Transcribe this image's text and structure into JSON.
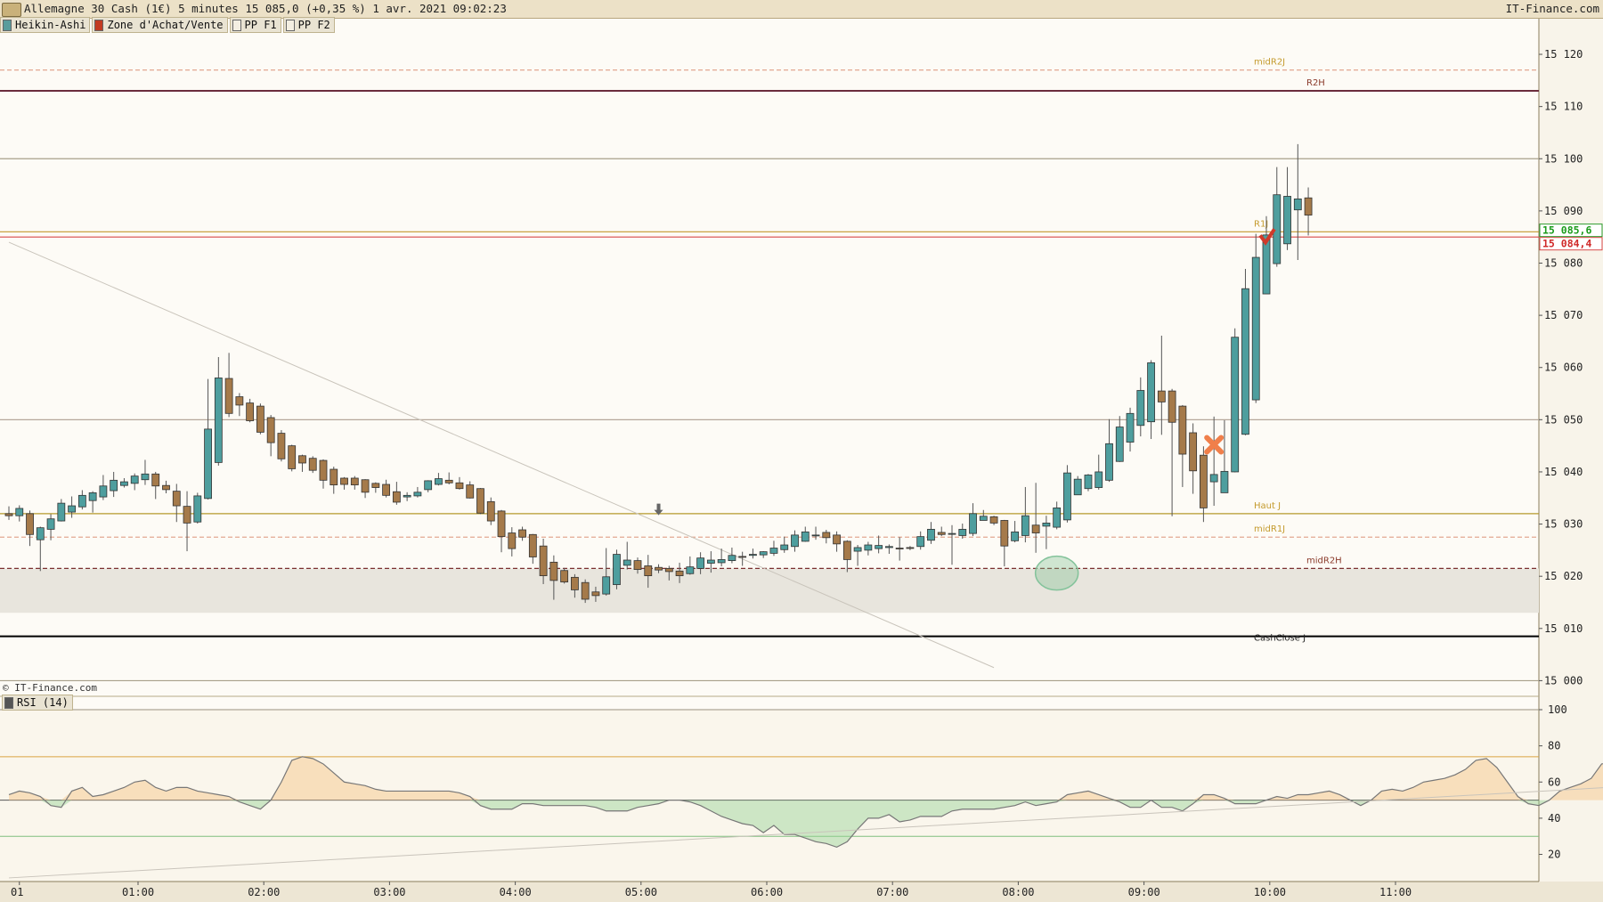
{
  "header": {
    "title": "Allemagne 30 Cash (1€) 5 minutes 15 085,0 (+0,35 %) 1 avr. 2021 09:02:23",
    "brand": "IT-Finance.com"
  },
  "legend": [
    {
      "label": "Heikin-Ashi",
      "swatch": "#5a9c9c"
    },
    {
      "label": "Zone d'Achat/Vente",
      "swatch": "#c23b22"
    },
    {
      "label": "PP F1",
      "swatch": "#f4efe2"
    },
    {
      "label": "PP F2",
      "swatch": "#f4efe2"
    }
  ],
  "watermark": "© IT-Finance.com",
  "rsi_label": "RSI (14)",
  "colors": {
    "bull": "#4e9e9e",
    "bear": "#a57a4a",
    "background": "#fdfbf6",
    "gold_line": "#c49a2c",
    "red_line": "#d84a4a"
  },
  "chart_data": [
    {
      "type": "candlestick",
      "subtype": "heikin-ashi",
      "interval": "5 minutes",
      "y_ticks": [
        "15 000",
        "15 010",
        "15 020",
        "15 030",
        "15 040",
        "15 050",
        "15 060",
        "15 070",
        "15 080",
        "15 090",
        "15 100",
        "15 110",
        "15 120"
      ],
      "ylim": [
        14997,
        15127
      ],
      "x_ticks": [
        "01",
        "01:00",
        "02:00",
        "03:00",
        "04:00",
        "05:00",
        "06:00",
        "07:00",
        "08:00",
        "09:00",
        "10:00",
        "11:00"
      ],
      "last_price_labels": [
        {
          "text": "15 085,6",
          "value": 15085.6,
          "color": "green"
        },
        {
          "text": "15 084,4",
          "value": 15084.4,
          "color": "red"
        }
      ],
      "levels": [
        {
          "name": "midR2J",
          "value": 15117,
          "style": "dashed",
          "color": "#e3a891"
        },
        {
          "name": "R2H",
          "value": 15113,
          "style": "solid",
          "color": "#6b2c3c"
        },
        {
          "name": "",
          "value": 15100,
          "style": "solid",
          "color": "#a8a08a"
        },
        {
          "name": "R1J",
          "value": 15086,
          "style": "solid",
          "color": "#c49a2c"
        },
        {
          "name": "",
          "value": 15085,
          "style": "solid",
          "color": "#d84a4a"
        },
        {
          "name": "",
          "value": 15050,
          "style": "solid",
          "color": "#b5a79a"
        },
        {
          "name": "Haut J",
          "value": 15032,
          "style": "solid",
          "color": "#b59a2c"
        },
        {
          "name": "midR1J",
          "value": 15027.5,
          "style": "dashed",
          "color": "#e3a891"
        },
        {
          "name": "midR2H",
          "value": 15021.5,
          "style": "dashed",
          "color": "#7b3030"
        },
        {
          "name": "CashClose J",
          "value": 15008.5,
          "style": "solid",
          "color": "#000000"
        },
        {
          "name": "",
          "value": 15000,
          "style": "solid",
          "color": "#a8a08a"
        }
      ],
      "zone": {
        "from": 15021.5,
        "to": 15013
      },
      "candles": [
        [
          15032,
          15031.6,
          15033.4,
          15030.8
        ],
        [
          15031.6,
          15033,
          15033.6,
          15030.5
        ],
        [
          15032,
          15028,
          15032.6,
          15025.8
        ],
        [
          15027,
          15029.3,
          15029.5,
          15021
        ],
        [
          15029,
          15031,
          15031.9,
          15026.9
        ],
        [
          15030.6,
          15034,
          15034.8,
          15030.5
        ],
        [
          15032.3,
          15033.5,
          15035.3,
          15031.2
        ],
        [
          15033.3,
          15035.5,
          15036.5,
          15032.8
        ],
        [
          15034.5,
          15036,
          15036.3,
          15032.2
        ],
        [
          15035.2,
          15037.3,
          15039.4,
          15034.6
        ],
        [
          15036.4,
          15038.4,
          15040,
          15035.2
        ],
        [
          15037.4,
          15038.1,
          15038.8,
          15037
        ],
        [
          15037.8,
          15039.2,
          15039.7,
          15036.5
        ],
        [
          15038.5,
          15039.6,
          15042.3,
          15037.5
        ],
        [
          15039.6,
          15037.3,
          15040,
          15034.8
        ],
        [
          15037.4,
          15036.6,
          15038.3,
          15035.9
        ],
        [
          15036.3,
          15033.5,
          15037.7,
          15030.4
        ],
        [
          15033.4,
          15030.2,
          15036.3,
          15024.8
        ],
        [
          15030.4,
          15035.4,
          15036,
          15030.1
        ],
        [
          15034.9,
          15048.2,
          15057.8,
          15034.7
        ],
        [
          15041.8,
          15058,
          15062,
          15041.2
        ],
        [
          15057.9,
          15051.2,
          15062.8,
          15050.5
        ],
        [
          15054.4,
          15052.8,
          15055.1,
          15050.7
        ],
        [
          15053.2,
          15049.8,
          15054,
          15049.5
        ],
        [
          15052.6,
          15047.6,
          15053.1,
          15047.2
        ],
        [
          15050.4,
          15045.6,
          15050.9,
          15043
        ],
        [
          15047.4,
          15042.5,
          15048,
          15042
        ],
        [
          15045,
          15040.6,
          15045.2,
          15040.1
        ],
        [
          15043.1,
          15041.7,
          15043.3,
          15040
        ],
        [
          15042.6,
          15040.3,
          15043,
          15039.8
        ],
        [
          15042.2,
          15038.4,
          15042.4,
          15036.8
        ],
        [
          15040.5,
          15037.5,
          15041,
          15035.8
        ],
        [
          15038.8,
          15037.6,
          15039,
          15036.6
        ],
        [
          15038.8,
          15037.5,
          15039.2,
          15036.6
        ],
        [
          15038.5,
          15036.1,
          15038.6,
          15035
        ],
        [
          15037.8,
          15037,
          15038,
          15036
        ],
        [
          15037.6,
          15035.5,
          15038.5,
          15035.1
        ],
        [
          15036.2,
          15034.2,
          15038.1,
          15033.7
        ],
        [
          15035.2,
          15035.5,
          15036.1,
          15034.4
        ],
        [
          15035.4,
          15036.1,
          15037.1,
          15035.1
        ],
        [
          15036.6,
          15038.3,
          15038.4,
          15036.1
        ],
        [
          15037.6,
          15038.7,
          15039.8,
          15037.4
        ],
        [
          15038.4,
          15037.9,
          15039.9,
          15037.6
        ],
        [
          15037.9,
          15036.8,
          15039,
          15036.6
        ],
        [
          15037.5,
          15035,
          15038.2,
          15034.9
        ],
        [
          15036.8,
          15032.1,
          15036.9,
          15031.9
        ],
        [
          15034.3,
          15030.6,
          15035.1,
          15029.8
        ],
        [
          15032.5,
          15027.6,
          15032.7,
          15024.6
        ],
        [
          15028.3,
          15025.3,
          15029.4,
          15023.8
        ],
        [
          15028.9,
          15027.5,
          15029.5,
          15026.8
        ],
        [
          15028,
          15023.7,
          15028.1,
          15022.4
        ],
        [
          15025.8,
          15020.1,
          15027.2,
          15018.5
        ],
        [
          15022.7,
          15019.2,
          15024,
          15015.5
        ],
        [
          15021.1,
          15018.9,
          15021.6,
          15018.6
        ],
        [
          15019.8,
          15017.4,
          15020.4,
          15015.9
        ],
        [
          15018.8,
          15015.6,
          15019.4,
          15014.9
        ],
        [
          15017,
          15016.3,
          15018,
          15015.1
        ],
        [
          15016.6,
          15019.9,
          15025.4,
          15016.3
        ],
        [
          15018.4,
          15024.2,
          15025.1,
          15017.5
        ],
        [
          15022.1,
          15023.1,
          15026.6,
          15021.3
        ],
        [
          15023,
          15021.3,
          15023.6,
          15020.5
        ],
        [
          15022,
          15020.1,
          15024.1,
          15017.8
        ],
        [
          15021.7,
          15021.2,
          15022.3,
          15020.6
        ],
        [
          15021.5,
          15020.9,
          15022,
          15019.2
        ],
        [
          15021,
          15020.1,
          15022.6,
          15018.7
        ],
        [
          15020.5,
          15021.8,
          15023.8,
          15020.3
        ],
        [
          15021.5,
          15023.5,
          15024.6,
          15020.4
        ],
        [
          15022.5,
          15023.1,
          15024.8,
          15020.7
        ],
        [
          15022.6,
          15023.2,
          15025.3,
          15021.9
        ],
        [
          15023,
          15024,
          15025.5,
          15022.5
        ],
        [
          15023.8,
          15023.7,
          15024.7,
          15022
        ],
        [
          15024,
          15024.2,
          15025.3,
          15023.4
        ],
        [
          15024.1,
          15024.7,
          15024.8,
          15023.5
        ],
        [
          15024.4,
          15025.4,
          15026.8,
          15023.9
        ],
        [
          15025.1,
          15026,
          15027.6,
          15024.5
        ],
        [
          15025.7,
          15027.9,
          15028.8,
          15024.7
        ],
        [
          15026.7,
          15028.5,
          15029.5,
          15026.6
        ],
        [
          15027.8,
          15027.9,
          15029.5,
          15027
        ],
        [
          15028.4,
          15027.4,
          15028.9,
          15026.3
        ],
        [
          15027.9,
          15026.2,
          15028.6,
          15024.7
        ],
        [
          15026.7,
          15023.2,
          15026.9,
          15020.8
        ],
        [
          15024.8,
          15025.5,
          15026,
          15022
        ],
        [
          15025,
          15026,
          15026.6,
          15024
        ],
        [
          15025.3,
          15025.9,
          15027.8,
          15024.4
        ],
        [
          15025.5,
          15025.7,
          15026.1,
          15024.3
        ],
        [
          15025.4,
          15025.3,
          15027.5,
          15023
        ],
        [
          15025.5,
          15025.4,
          15025.8,
          15025
        ],
        [
          15025.7,
          15027.6,
          15028.6,
          15025.1
        ],
        [
          15026.9,
          15029,
          15030.4,
          15026.2
        ],
        [
          15028.4,
          15028,
          15029.5,
          15027.7
        ],
        [
          15028.2,
          15028.2,
          15029.8,
          15022.2
        ],
        [
          15027.8,
          15029,
          15030.1,
          15027.2
        ],
        [
          15028.2,
          15032,
          15034,
          15027.7
        ],
        [
          15030.7,
          15031.5,
          15032.7,
          15031
        ],
        [
          15031.4,
          15030.2,
          15031.6,
          15029.8
        ],
        [
          15030.7,
          15025.8,
          15030.8,
          15021.9
        ],
        [
          15026.8,
          15028.5,
          15030.6,
          15026.5
        ],
        [
          15027.8,
          15031.6,
          15037.1,
          15026.5
        ],
        [
          15029.8,
          15028.3,
          15037.9,
          15024.5
        ],
        [
          15029.6,
          15030.2,
          15031.6,
          15025.2
        ],
        [
          15029.4,
          15033.1,
          15034.3,
          15029
        ],
        [
          15030.8,
          15039.8,
          15041.3,
          15030.3
        ],
        [
          15035.6,
          15038.6,
          15039.2,
          15038
        ],
        [
          15036.8,
          15039.4,
          15039.6,
          15036.3
        ],
        [
          15037,
          15040,
          15043.3,
          15036.6
        ],
        [
          15038.4,
          15045.4,
          15050.1,
          15038.1
        ],
        [
          15042,
          15048.6,
          15050.7,
          15041.9
        ],
        [
          15045.7,
          15051.2,
          15052.3,
          15043.9
        ],
        [
          15048.9,
          15055.6,
          15058.1,
          15046.8
        ],
        [
          15049.6,
          15060.9,
          15061.4,
          15046.3
        ],
        [
          15055.5,
          15053.4,
          15066.1,
          15047.1
        ],
        [
          15055.5,
          15049.5,
          15055.9,
          15031.5
        ],
        [
          15052.6,
          15043.4,
          15052.8,
          15037.1
        ],
        [
          15047.5,
          15040.2,
          15049.3,
          15035.8
        ],
        [
          15043.2,
          15033.1,
          15044.9,
          15030.4
        ],
        [
          15038.1,
          15039.5,
          15050.6,
          15033.5
        ],
        [
          15036,
          15040.1,
          15049.9,
          15037.9
        ],
        [
          15040,
          15065.8,
          15067.5,
          15039.9
        ],
        [
          15047.2,
          15075.1,
          15078.9,
          15047
        ],
        [
          15053.8,
          15081.1,
          15085.6,
          15053.2
        ],
        [
          15074.1,
          15085.4,
          15089,
          15074.1
        ],
        [
          15079.9,
          15093.1,
          15098.4,
          15079.3
        ],
        [
          15083.7,
          15092.8,
          15098.4,
          15082.5
        ],
        [
          15090.2,
          15092.3,
          15102.8,
          15080.6
        ],
        [
          15092.5,
          15089.2,
          15094.5,
          15085.3
        ]
      ],
      "markers": [
        {
          "type": "buy_check",
          "x_index": 120,
          "value": 15084.8,
          "color": "#d03a2a"
        },
        {
          "type": "sell_cross",
          "x_index": 115,
          "value": 15045.2,
          "color": "#f07f4a"
        },
        {
          "type": "down_arrow",
          "x_index": 62,
          "value": 15032.2,
          "color": "#666666"
        },
        {
          "type": "circle",
          "x_index": 100,
          "value": 15020.6,
          "color": "#84c39b"
        }
      ],
      "trendline": {
        "from": {
          "x_index": 0,
          "value": 15084
        },
        "to": {
          "x_index": 94,
          "value": 15002.5
        }
      }
    },
    {
      "type": "line",
      "name": "RSI (14)",
      "y_ticks": [
        "100",
        "80",
        "60",
        "40",
        "20"
      ],
      "ylim": [
        5,
        100
      ],
      "overbought": 74,
      "oversold": 30,
      "midline": 50,
      "values": [
        53,
        55,
        54,
        52,
        47,
        46,
        55,
        57,
        52,
        53,
        55,
        57,
        60,
        61,
        57,
        55,
        57,
        57,
        55,
        54,
        53,
        52,
        49,
        47,
        45,
        50,
        60,
        72,
        74,
        73,
        70,
        65,
        60,
        59,
        58,
        56,
        55,
        55,
        55,
        55,
        55,
        55,
        55,
        54,
        52,
        47,
        45,
        45,
        45,
        48,
        48,
        47,
        47,
        47,
        47,
        47,
        46,
        44,
        44,
        44,
        46,
        47,
        48,
        50,
        50,
        49,
        47,
        44,
        41,
        39,
        37,
        36,
        32,
        36,
        31,
        31,
        29,
        27,
        26,
        24,
        27,
        34,
        40,
        40,
        42,
        38,
        39,
        41,
        41,
        41,
        44,
        45,
        45,
        45,
        45,
        46,
        47,
        49,
        47,
        48,
        49,
        53,
        54,
        55,
        53,
        51,
        49,
        46,
        46,
        50,
        46,
        46,
        44,
        48,
        53,
        53,
        51,
        48,
        48,
        48,
        50,
        52,
        51,
        53,
        53,
        54,
        55,
        53,
        50,
        47,
        50,
        55,
        56,
        55,
        57,
        60,
        61,
        62,
        64,
        67,
        72,
        73,
        68,
        60,
        52,
        48,
        47,
        50,
        55,
        57,
        59,
        62,
        70,
        71,
        71,
        73,
        74,
        74,
        73,
        68
      ],
      "trendline": {
        "from": {
          "x_index": 0,
          "value": 7
        },
        "to": {
          "x_index": 180,
          "value": 66
        }
      }
    }
  ]
}
